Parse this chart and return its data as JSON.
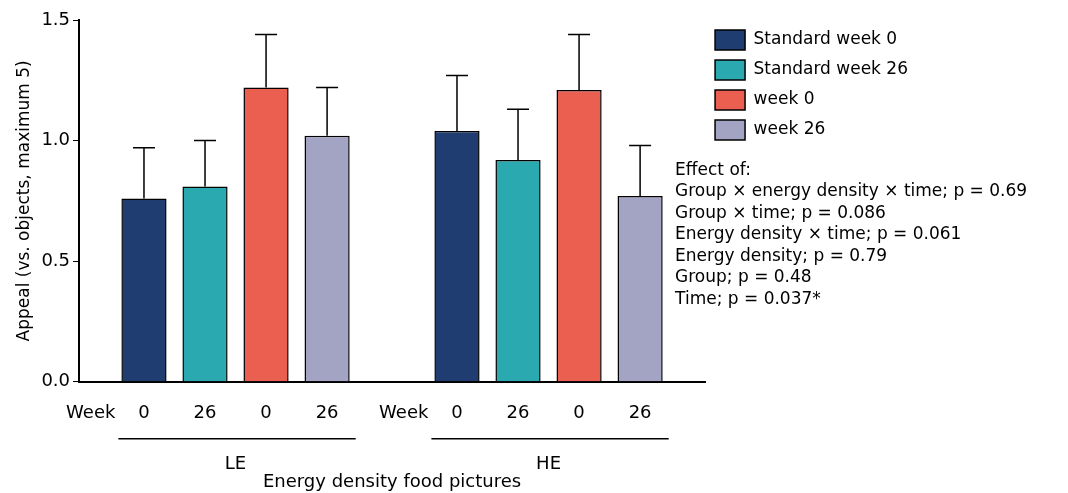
{
  "chart_data": {
    "type": "bar",
    "xlabel": "Energy density food pictures",
    "ylabel": "Appeal (vs. objects, maximum 5)",
    "categories": [
      "LE",
      "HE"
    ],
    "series": [
      {
        "name": "Standard week 0",
        "color": "#1f3d70",
        "values": [
          0.76,
          1.04
        ],
        "errors": [
          [
            0.76,
            0.97
          ],
          [
            1.04,
            1.27
          ]
        ]
      },
      {
        "name": "Standard week 26",
        "color": "#2aa9b0",
        "values": [
          0.81,
          0.92
        ],
        "errors": [
          [
            0.81,
            1.0
          ],
          [
            0.92,
            1.13
          ]
        ]
      },
      {
        "name": "week 0",
        "color": "#ea5f50",
        "values": [
          1.22,
          1.21
        ],
        "errors": [
          [
            1.22,
            1.44
          ],
          [
            1.21,
            1.44
          ]
        ]
      },
      {
        "name": "week 26",
        "color": "#a3a3c3",
        "values": [
          1.02,
          0.77
        ],
        "errors": [
          [
            1.02,
            1.22
          ],
          [
            0.77,
            0.98
          ]
        ]
      }
    ],
    "ylim": [
      0,
      1.5
    ],
    "yticks": [
      {
        "value": 0,
        "label": "0.0"
      },
      {
        "value": 0.5,
        "label": "0.5"
      },
      {
        "value": 1,
        "label": "1.0"
      },
      {
        "value": 1.5,
        "label": "1.5"
      }
    ],
    "grid": false,
    "legend": "top right",
    "annotations": [
      "Week",
      "0",
      "26",
      "0",
      "26",
      "Week",
      "0",
      "26",
      "0",
      "26",
      "Effect of:",
      "Group × energy density × time; p = 0.69",
      "Group × time; p = 0.086",
      "Energy density × time; p = 0.061",
      "Energy density; p = 0.79",
      "Group; p = 0.48",
      "Time; p = 0.037*"
    ]
  }
}
